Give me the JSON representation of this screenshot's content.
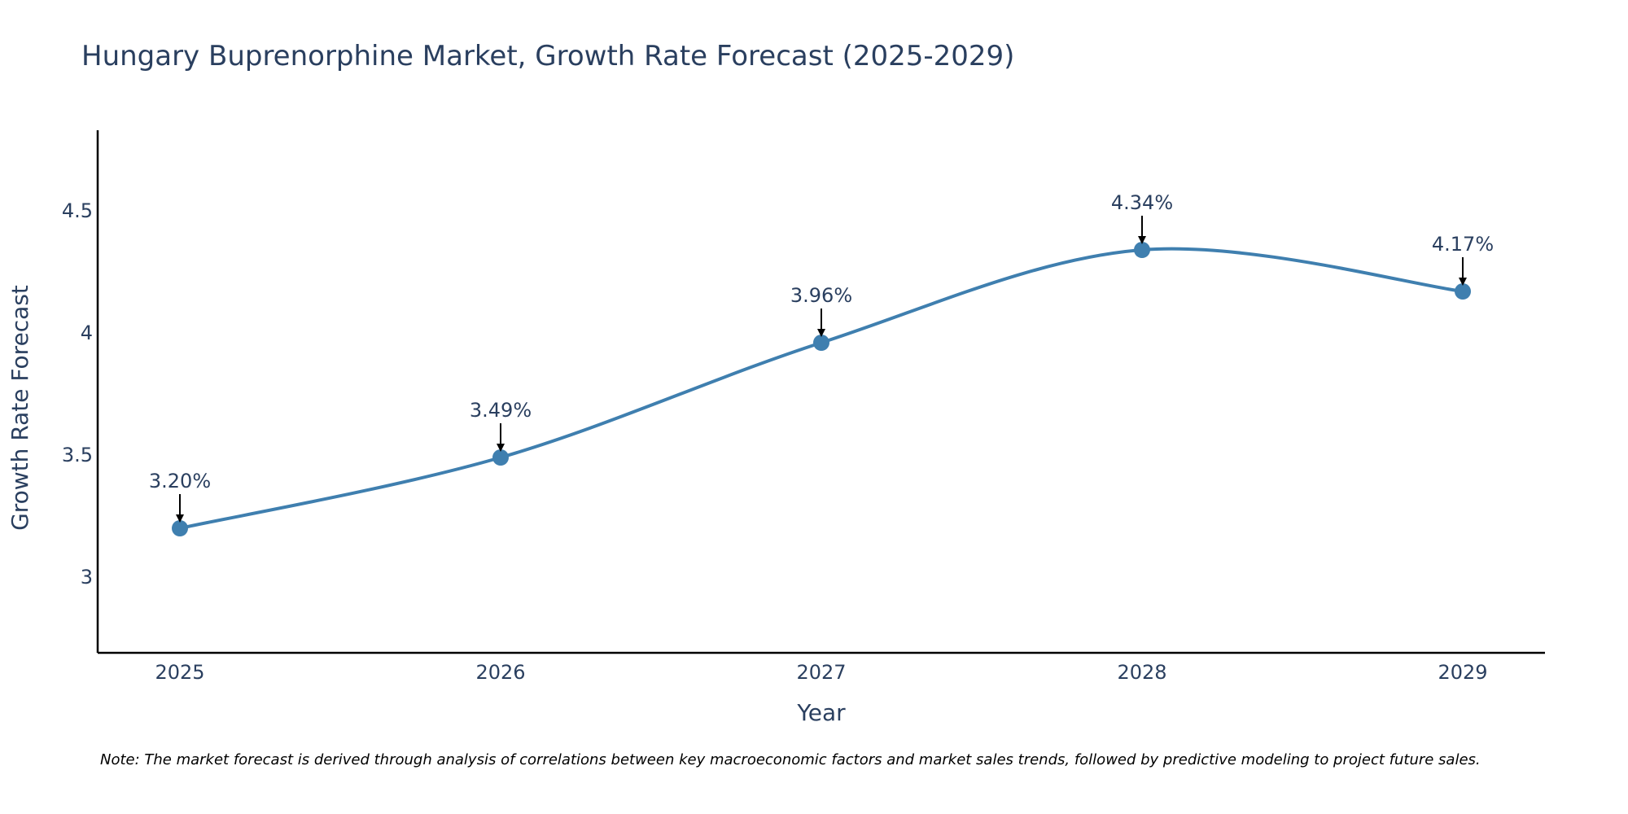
{
  "colors": {
    "line": "#3f7faf",
    "marker": "#3f7faf",
    "axis": "#000000",
    "text": "#2a3f5f",
    "arrow": "#000000"
  },
  "chart_data": {
    "type": "line",
    "title": "Hungary Buprenorphine Market, Growth Rate Forecast (2025-2029)",
    "xlabel": "Year",
    "ylabel": "Growth Rate Forecast",
    "categories": [
      "2025",
      "2026",
      "2027",
      "2028",
      "2029"
    ],
    "series": [
      {
        "name": "Growth Rate Forecast",
        "values": [
          3.2,
          3.49,
          3.96,
          4.34,
          4.17
        ],
        "labels": [
          "3.20%",
          "3.49%",
          "3.96%",
          "4.34%",
          "4.17%"
        ]
      }
    ],
    "ylim": [
      2.69,
      4.83
    ],
    "yticks": [
      3,
      3.5,
      4,
      4.5
    ],
    "ytick_labels": [
      "3",
      "3.5",
      "4",
      "4.5"
    ],
    "grid": false,
    "line_shape": "spline",
    "note": "Note: The market forecast is derived through analysis of correlations between key macroeconomic factors and market sales trends, followed by predictive modeling to project future sales."
  }
}
